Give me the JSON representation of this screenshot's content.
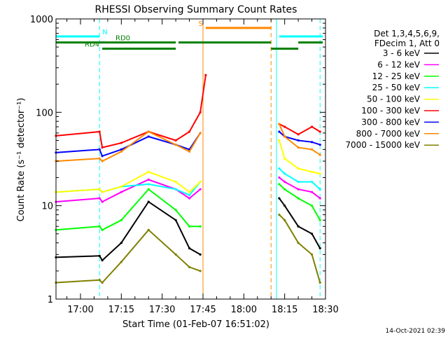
{
  "chart_data": {
    "type": "line",
    "title": "RHESSI Observing Summary Count Rates",
    "xlabel": "Start Time (01-Feb-07 16:51:02)",
    "ylabel": "Count Rate (s⁻¹ detector⁻¹)",
    "y_scale": "log",
    "ylim": [
      1,
      1000
    ],
    "xlim": [
      "16:51",
      "18:30"
    ],
    "x_ticks": [
      "17:00",
      "17:15",
      "17:30",
      "17:45",
      "18:00",
      "18:15",
      "18:30"
    ],
    "y_ticks": [
      "1",
      "10",
      "100",
      "1000"
    ],
    "legend_header": [
      "Det 1,3,4,5,6,9,",
      "FDecim 1, Att 0"
    ],
    "legend_position": "right",
    "series": [
      {
        "name": "3 - 6 keV",
        "color": "#000000",
        "x": [
          "16:51",
          "17:07",
          "17:08",
          "17:15",
          "17:25",
          "17:35",
          "17:40",
          "17:44",
          "17:46"
        ],
        "values": [
          2.8,
          2.9,
          2.6,
          4,
          11,
          7,
          3.5,
          3,
          null
        ]
      },
      {
        "name": "6 - 12 keV",
        "color": "#ff00ff",
        "x": [
          "16:51",
          "17:07",
          "17:08",
          "17:15",
          "17:25",
          "17:35",
          "17:40",
          "17:44",
          "17:46"
        ],
        "values": [
          11,
          12,
          11,
          14,
          19,
          15,
          12,
          15,
          null
        ]
      },
      {
        "name": "12 - 25 keV",
        "color": "#00ff00",
        "x": [
          "16:51",
          "17:07",
          "17:08",
          "17:15",
          "17:25",
          "17:35",
          "17:40",
          "17:44",
          "17:46"
        ],
        "values": [
          5.5,
          6,
          5.5,
          7,
          15,
          9,
          6,
          6,
          null
        ]
      },
      {
        "name": "25 - 50 keV",
        "color": "#00ffff",
        "x": [
          "16:51",
          "17:07",
          "17:08",
          "17:15",
          "17:25",
          "17:35",
          "17:40",
          "17:44",
          "17:46"
        ],
        "values": [
          14,
          15,
          14,
          16,
          17,
          15,
          13,
          18,
          null
        ]
      },
      {
        "name": "50 - 100 keV",
        "color": "#ffff00",
        "x": [
          "16:51",
          "17:07",
          "17:08",
          "17:15",
          "17:25",
          "17:35",
          "17:40",
          "17:44",
          "17:46"
        ],
        "values": [
          14,
          15,
          14,
          16,
          23,
          18,
          14,
          18,
          null
        ]
      },
      {
        "name": "100 - 300 keV",
        "color": "#ff0000",
        "x": [
          "16:51",
          "17:07",
          "17:08",
          "17:15",
          "17:25",
          "17:35",
          "17:40",
          "17:44",
          "17:46"
        ],
        "values": [
          56,
          62,
          42,
          47,
          62,
          50,
          62,
          100,
          250
        ]
      },
      {
        "name": "300 - 800 keV",
        "color": "#0000ff",
        "x": [
          "16:51",
          "17:07",
          "17:08",
          "17:15",
          "17:25",
          "17:35",
          "17:40",
          "17:44",
          "17:46"
        ],
        "values": [
          37,
          40,
          34,
          40,
          55,
          45,
          40,
          60,
          null
        ]
      },
      {
        "name": "800 - 7000 keV",
        "color": "#ff8800",
        "x": [
          "16:51",
          "17:07",
          "17:08",
          "17:15",
          "17:25",
          "17:35",
          "17:40",
          "17:44",
          "17:46"
        ],
        "values": [
          30,
          32,
          30,
          38,
          62,
          45,
          38,
          60,
          null
        ]
      },
      {
        "name": "7000 - 15000 keV",
        "color": "#808000",
        "x": [
          "16:51",
          "17:07",
          "17:08",
          "17:15",
          "17:25",
          "17:35",
          "17:40",
          "17:44",
          "17:46"
        ],
        "values": [
          1.5,
          1.6,
          1.5,
          2.5,
          5.5,
          3,
          2.2,
          2,
          null
        ]
      }
    ],
    "series_after_gap": [
      {
        "name": "3 - 6 keV",
        "x": [
          "18:13",
          "18:15",
          "18:20",
          "18:25",
          "18:28"
        ],
        "values": [
          12,
          10,
          6,
          5,
          3.5
        ]
      },
      {
        "name": "6 - 12 keV",
        "x": [
          "18:13",
          "18:15",
          "18:20",
          "18:25",
          "18:28"
        ],
        "values": [
          20,
          18,
          15,
          14,
          12
        ]
      },
      {
        "name": "12 - 25 keV",
        "x": [
          "18:13",
          "18:15",
          "18:20",
          "18:25",
          "18:28"
        ],
        "values": [
          17,
          15,
          12,
          10,
          7
        ]
      },
      {
        "name": "25 - 50 keV",
        "x": [
          "18:13",
          "18:15",
          "18:20",
          "18:25",
          "18:28"
        ],
        "values": [
          25,
          22,
          18,
          18,
          15
        ]
      },
      {
        "name": "50 - 100 keV",
        "x": [
          "18:13",
          "18:15",
          "18:20",
          "18:25",
          "18:28"
        ],
        "values": [
          50,
          32,
          25,
          23,
          22
        ]
      },
      {
        "name": "100 - 300 keV",
        "x": [
          "18:13",
          "18:15",
          "18:20",
          "18:25",
          "18:28"
        ],
        "values": [
          75,
          70,
          58,
          70,
          62
        ]
      },
      {
        "name": "300 - 800 keV",
        "x": [
          "18:13",
          "18:15",
          "18:20",
          "18:25",
          "18:28"
        ],
        "values": [
          62,
          55,
          50,
          48,
          45
        ]
      },
      {
        "name": "800 - 7000 keV",
        "x": [
          "18:13",
          "18:15",
          "18:20",
          "18:25",
          "18:28"
        ],
        "values": [
          75,
          55,
          42,
          40,
          35
        ]
      },
      {
        "name": "7000 - 15000 keV",
        "x": [
          "18:13",
          "18:15",
          "18:20",
          "18:25",
          "18:28"
        ],
        "values": [
          8,
          7,
          4,
          3,
          1.5
        ]
      }
    ],
    "state_bars": [
      {
        "label": "N",
        "color": "#00ffff",
        "level": 650,
        "segments": [
          [
            "16:51",
            "17:07"
          ],
          [
            "18:13",
            "18:29"
          ]
        ]
      },
      {
        "label": "S",
        "color": "#ff8800",
        "level": 800,
        "segments": [
          [
            "17:46",
            "18:10"
          ]
        ]
      },
      {
        "label": "RD0",
        "color": "#008000",
        "level": 560,
        "segments": [
          [
            "16:51",
            "17:35"
          ],
          [
            "17:36",
            "18:10"
          ],
          [
            "18:20",
            "18:29"
          ]
        ]
      },
      {
        "label": "RD4",
        "color": "#008000",
        "level": 480,
        "segments": [
          [
            "17:08",
            "17:35"
          ],
          [
            "18:10",
            "18:20"
          ]
        ]
      }
    ],
    "vertical_markers": [
      {
        "time": "16:51",
        "color": "#00ffff",
        "style": "solid"
      },
      {
        "time": "17:07",
        "color": "#00ffff",
        "style": "dashed"
      },
      {
        "time": "17:45",
        "color": "#ff8800",
        "style": "solid"
      },
      {
        "time": "18:10",
        "color": "#ff8800",
        "style": "dashed"
      },
      {
        "time": "18:12",
        "color": "#00ffff",
        "style": "solid"
      },
      {
        "time": "18:28",
        "color": "#00ffff",
        "style": "dashed"
      }
    ],
    "footer_timestamp": "14-Oct-2021 02:39"
  }
}
